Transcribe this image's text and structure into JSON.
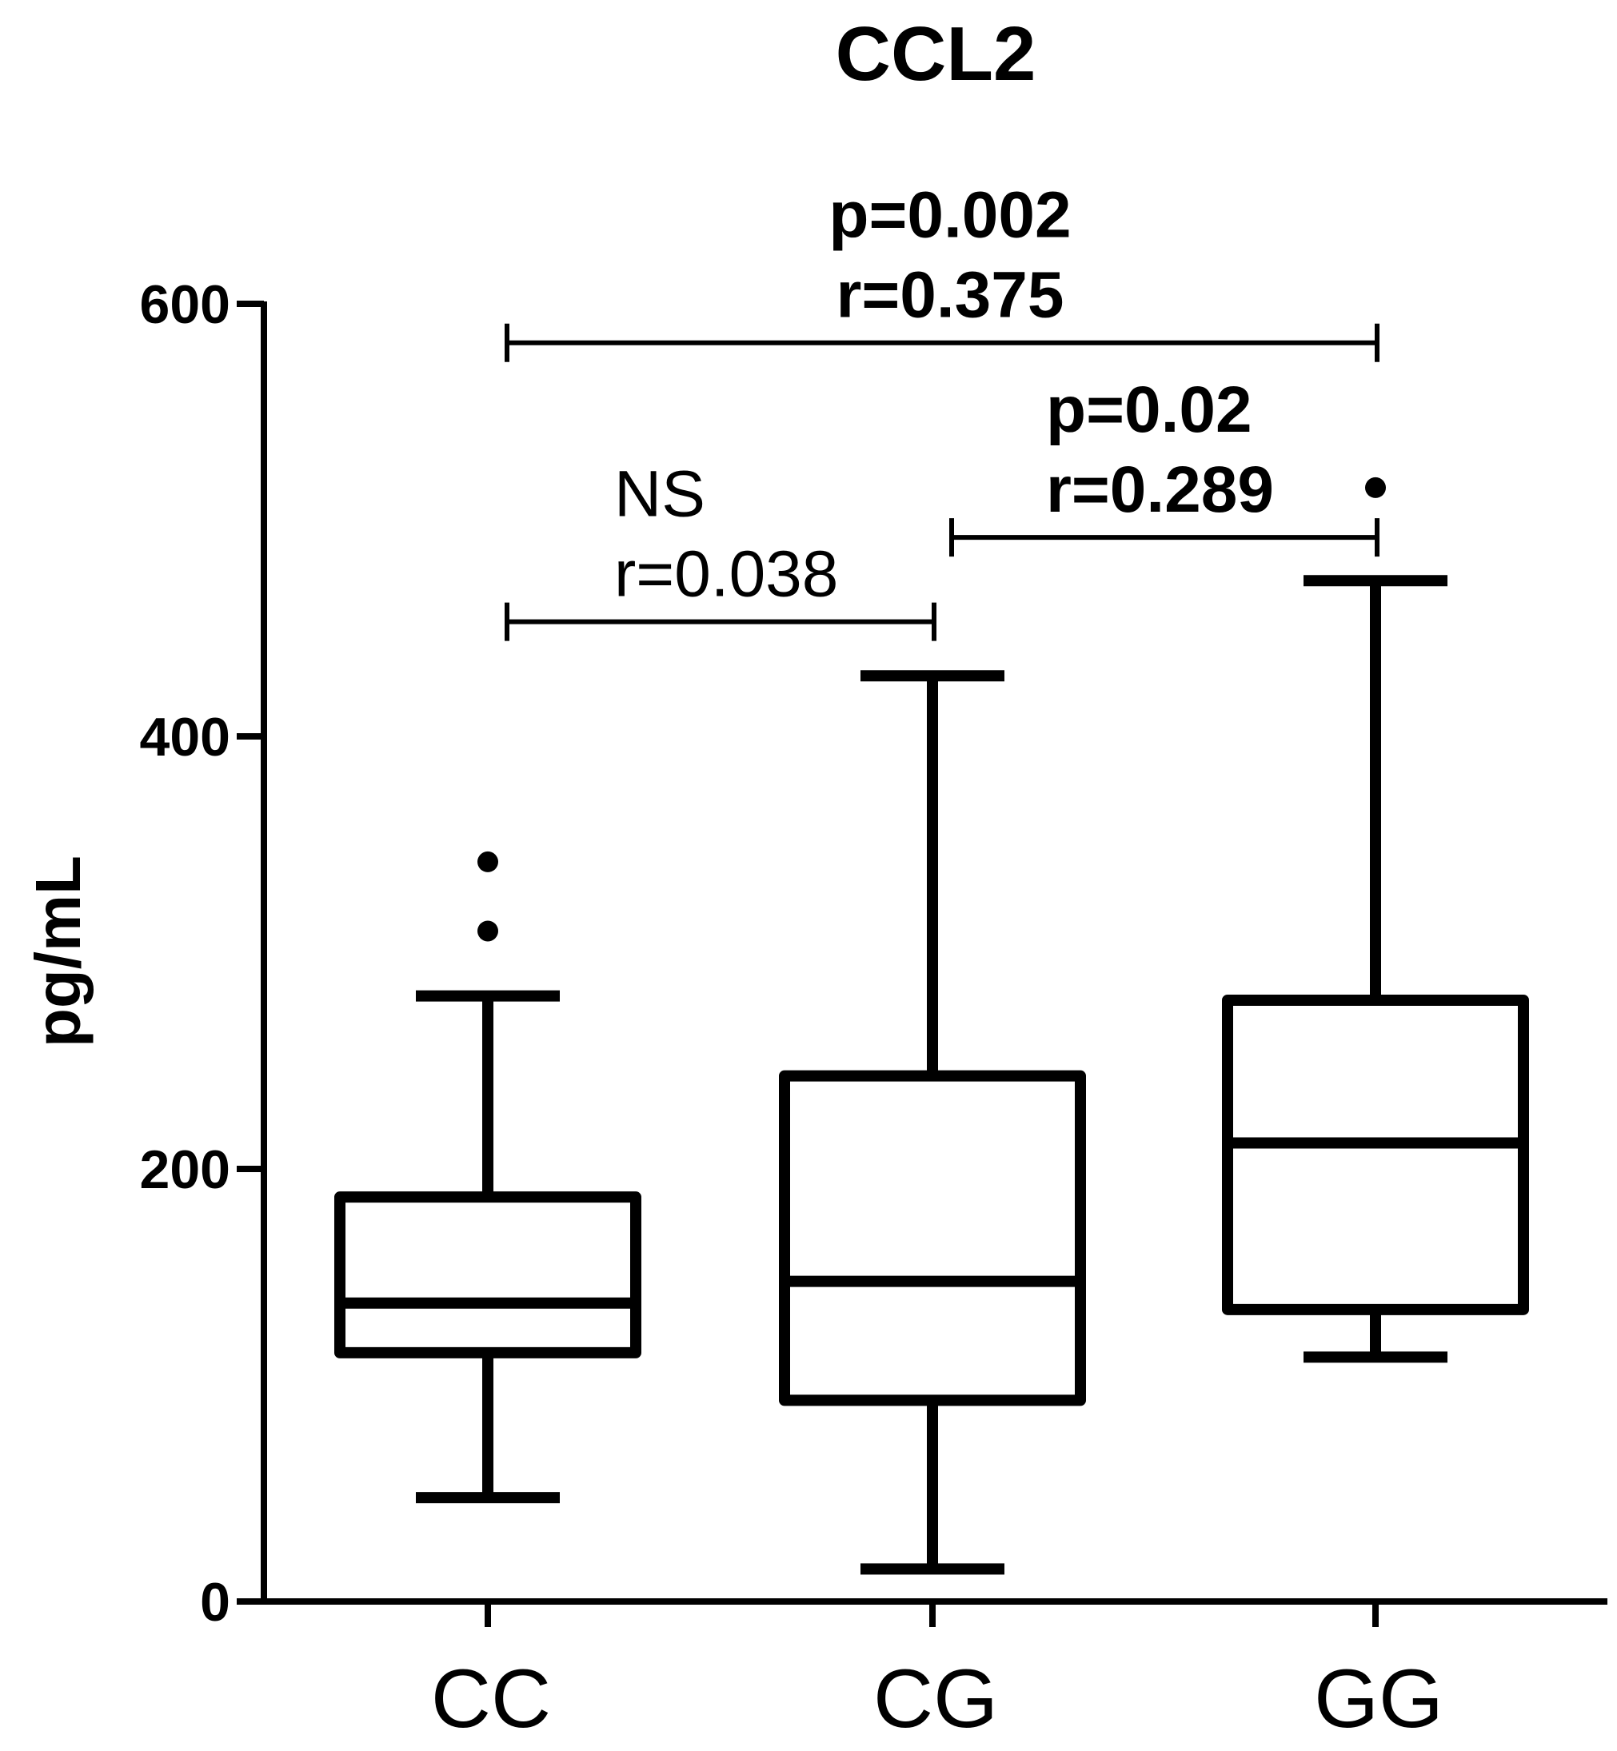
{
  "chart_data": {
    "type": "box",
    "title": "CCL2",
    "ylabel": "pg/mL",
    "xlabel": "",
    "ylim": [
      0,
      600
    ],
    "yticks": [
      0,
      200,
      400,
      600
    ],
    "categories": [
      "CC",
      "CG",
      "GG"
    ],
    "boxes": [
      {
        "category": "CC",
        "whisker_low": 48,
        "q1": 115,
        "median": 138,
        "q3": 187,
        "whisker_high": 280,
        "outliers": [
          310,
          342
        ]
      },
      {
        "category": "CG",
        "whisker_low": 15,
        "q1": 93,
        "median": 148,
        "q3": 243,
        "whisker_high": 428,
        "outliers": []
      },
      {
        "category": "GG",
        "whisker_low": 113,
        "q1": 135,
        "median": 212,
        "q3": 278,
        "whisker_high": 472,
        "outliers": [
          515
        ]
      }
    ],
    "comparisons": [
      {
        "from": "CC",
        "to": "CG",
        "value": 453,
        "line1": "NS",
        "line2": "r=0.038",
        "bold": false
      },
      {
        "from": "CG",
        "to": "GG",
        "value": 492,
        "line1": "p=0.02",
        "line2": "r=0.289",
        "bold": true
      },
      {
        "from": "CC",
        "to": "GG",
        "value": 582,
        "line1": "p=0.002",
        "line2": "r=0.375",
        "bold": true
      }
    ]
  }
}
